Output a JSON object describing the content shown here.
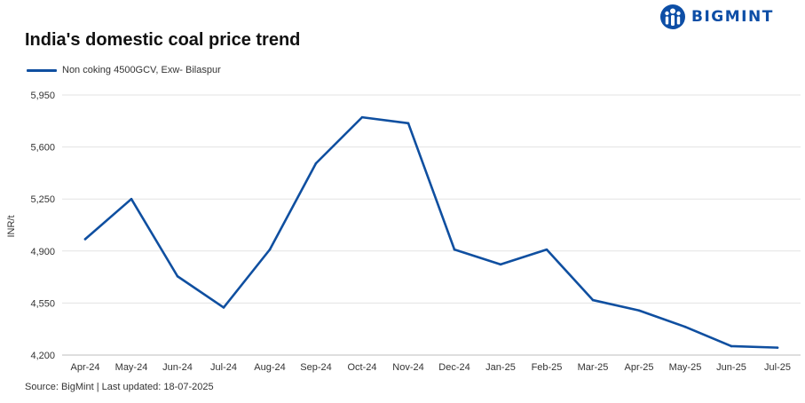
{
  "brand": {
    "name": "BIGMINT",
    "color": "#0d4ea6",
    "logo_icon": "bigmint-logo-icon"
  },
  "chart_data": {
    "type": "line",
    "title": "India's domestic coal price trend",
    "ylabel": "INR/t",
    "xlabel": "",
    "categories": [
      "Apr-24",
      "May-24",
      "Jun-24",
      "Jul-24",
      "Aug-24",
      "Sep-24",
      "Oct-24",
      "Nov-24",
      "Dec-24",
      "Jan-25",
      "Feb-25",
      "Mar-25",
      "Apr-25",
      "May-25",
      "Jun-25",
      "Jul-25"
    ],
    "series": [
      {
        "name": "Non coking 4500GCV, Exw- Bilaspur",
        "color": "#0f4fa0",
        "values": [
          4980,
          5250,
          4730,
          4520,
          4910,
          5490,
          5800,
          5760,
          4910,
          4810,
          4910,
          4570,
          4500,
          4390,
          4260,
          4250
        ]
      }
    ],
    "ylim": [
      4200,
      5950
    ],
    "yticks": [
      "4,200",
      "4,550",
      "4,900",
      "5,250",
      "5,600",
      "5,950"
    ],
    "ytick_values": [
      4200,
      4550,
      4900,
      5250,
      5600,
      5950
    ],
    "grid": true,
    "legend_position": "top-left",
    "source": "Source: BigMint | Last updated: 18-07-2025"
  }
}
